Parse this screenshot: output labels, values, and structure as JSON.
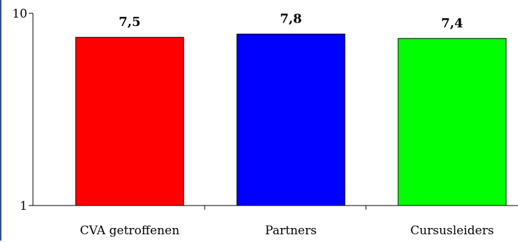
{
  "chart_data": {
    "type": "bar",
    "categories": [
      "CVA getroffenen",
      "Partners",
      "Cursusleiders"
    ],
    "values": [
      7.5,
      7.8,
      7.4
    ],
    "value_labels": [
      "7,5",
      "7,8",
      "7,4"
    ],
    "yscale": "log",
    "ylim": [
      1,
      10
    ],
    "y_ticks": [
      1,
      10
    ],
    "y_tick_labels": [
      "1",
      "10"
    ],
    "bar_colors": [
      "#ff0000",
      "#0000ff",
      "#00ff00"
    ],
    "grid": false,
    "legend": "none",
    "title": "",
    "xlabel": "",
    "ylabel": ""
  }
}
